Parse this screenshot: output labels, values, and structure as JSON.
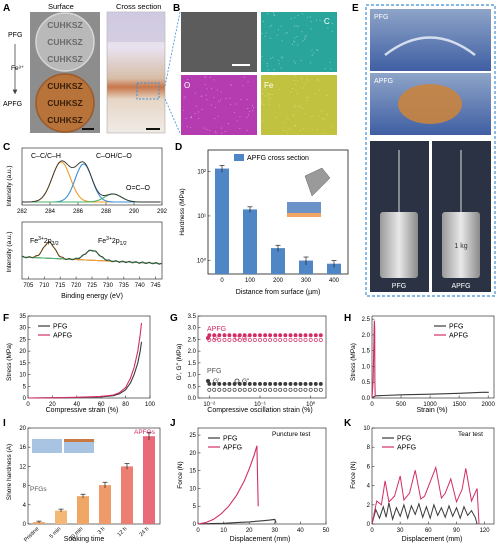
{
  "panels": {
    "A": {
      "letter": "A",
      "header_surface": "Surface",
      "header_cross": "Cross section",
      "label_pfg": "PFG",
      "label_fe": "Fe³⁺",
      "label_apfg": "APFG",
      "sample_text": "CUHKSZ",
      "colors": {
        "pfg_disc": "#b9b9b9",
        "apfg_disc": "#b8733a",
        "frame": "#8d8d8d"
      }
    },
    "B": {
      "letter": "B",
      "maps": [
        {
          "label": "",
          "color": "#5c5c5c"
        },
        {
          "label": "C",
          "color": "#2aa59b"
        },
        {
          "label": "O",
          "color": "#b43bb0"
        },
        {
          "label": "Fe",
          "color": "#c1c23f"
        }
      ]
    },
    "C": {
      "letter": "C",
      "top": {
        "ylabel": "Intensity (a.u.)",
        "peaks": [
          {
            "label": "C–C/C–H",
            "center": 284.8
          },
          {
            "label": "C–OH/C–O",
            "center": 286.4
          },
          {
            "label": "O=C–O",
            "center": 288.5
          }
        ],
        "xticks": [
          "282",
          "284",
          "286",
          "288",
          "290",
          "292"
        ]
      },
      "bottom": {
        "ylabel": "Intensity (a.u.)",
        "xlabel": "Binding energy (eV)",
        "peaks": [
          {
            "label_main": "Fe",
            "label_sup": "3+",
            "label_rest": "2p",
            "label_sub": "3/2",
            "center": 711.5
          },
          {
            "label_main": "Fe",
            "label_sup": "3+",
            "label_rest": "2p",
            "label_sub": "1/2",
            "center": 725
          }
        ],
        "xticks": [
          "705",
          "710",
          "715",
          "720",
          "725",
          "730",
          "735",
          "740",
          "745"
        ]
      },
      "colors": {
        "line": "#333333",
        "c_fit": "#f39c2a",
        "co_fit": "#3c8fd6",
        "oco_fit": "#4bb36a",
        "fe_fit1": "#f39c2a",
        "fe_fit2": "#4bb36a",
        "bg": "#7b5fb5"
      }
    },
    "D": {
      "letter": "D",
      "ylabel": "Hardness (MPa)",
      "xlabel": "Distance from surface (µm)",
      "yticks": [
        "10⁰",
        "10¹",
        "10²"
      ]
    },
    "E": {
      "letter": "E",
      "label_pfg_top": "PFG",
      "label_apfg_mid": "APFG",
      "label_pfg_bottom": "PFG",
      "label_apfg_bottom": "APFG",
      "weight_label": "1 kg",
      "border_color": "#3c8fd6"
    },
    "F": {
      "letter": "F",
      "ylabel": "Stress (MPa)",
      "xlabel": "Compressive strain (%)",
      "xticks": [
        "0",
        "20",
        "40",
        "60",
        "80",
        "100"
      ],
      "yticks": [
        "0",
        "5",
        "10",
        "15",
        "20",
        "25",
        "30",
        "35"
      ]
    },
    "G": {
      "letter": "G",
      "ylabel": "G′, G″ (MPa)",
      "xlabel": "Compressive oscillation strain (%)",
      "apfg_title": "APFG",
      "pfg_title": "PFG",
      "g1": "G′",
      "g2": "G″",
      "xticks": [
        "10⁻²",
        "10⁻¹",
        "10⁰"
      ],
      "yticks": [
        "0.0",
        "0.5",
        "1.0",
        "1.5",
        "2.0",
        "2.5",
        "3.0",
        "3.5"
      ]
    },
    "H": {
      "letter": "H",
      "ylabel": "Stress (MPa)",
      "xlabel": "Strain (%)",
      "xticks": [
        "0",
        "500",
        "1000",
        "1500",
        "2000"
      ],
      "yticks": [
        "0.0",
        "0.5",
        "1.0",
        "1.5",
        "2.0",
        "2.5"
      ]
    },
    "I": {
      "letter": "I",
      "ylabel": "Shore hardness (A)",
      "xlabel": "Soaking time",
      "pfg_note": "PFGs",
      "apfg_note": "APFGs",
      "yticks": [
        "0",
        "4",
        "8",
        "12",
        "16",
        "20"
      ]
    },
    "J": {
      "letter": "J",
      "ylabel": "Force (N)",
      "xlabel": "Displacement (mm)",
      "note": "Puncture test",
      "xticks": [
        "0",
        "10",
        "20",
        "30",
        "40",
        "50"
      ],
      "yticks": [
        "0",
        "5",
        "10",
        "15",
        "20",
        "25"
      ]
    },
    "K": {
      "letter": "K",
      "ylabel": "Force (N)",
      "xlabel": "Displacement (mm)",
      "note": "Tear test",
      "xticks": [
        "0",
        "30",
        "60",
        "90",
        "120"
      ],
      "yticks": [
        "0",
        "2",
        "4",
        "6",
        "8",
        "10"
      ]
    }
  },
  "colors": {
    "pfg": "#3a3a3a",
    "apfg": "#d12e63",
    "bar_blue": "#4f86c6",
    "bar_pink": "#e96a78",
    "bar_orange": "#f0a766"
  },
  "chart_data": [
    {
      "id": "D",
      "type": "bar",
      "series": [
        {
          "name": "APFG cross section",
          "values": [
            115,
            14,
            1.9,
            1.0,
            0.85
          ]
        }
      ],
      "categories": [
        "0",
        "100",
        "200",
        "300",
        "400"
      ],
      "errors": [
        20,
        2,
        0.3,
        0.2,
        0.15
      ],
      "yscale": "log",
      "ylim": [
        0.5,
        300
      ],
      "xlabel": "Distance from surface (µm)",
      "ylabel": "Hardness (MPa)"
    },
    {
      "id": "F",
      "type": "line",
      "xlabel": "Compressive strain (%)",
      "ylabel": "Stress (MPa)",
      "xlim": [
        0,
        100
      ],
      "ylim": [
        0,
        35
      ],
      "legend": "top-left",
      "series": [
        {
          "name": "PFG",
          "x": [
            0,
            20,
            40,
            60,
            70,
            75,
            80,
            84,
            87,
            90,
            92,
            93
          ],
          "y": [
            0,
            0.1,
            0.2,
            0.5,
            1.0,
            1.8,
            3.5,
            6.5,
            10,
            15,
            20,
            24
          ]
        },
        {
          "name": "APFG",
          "x": [
            0,
            20,
            40,
            60,
            70,
            75,
            80,
            84,
            87,
            90,
            92,
            93
          ],
          "y": [
            0,
            0.1,
            0.3,
            0.7,
            1.3,
            2.3,
            4.5,
            8.5,
            13,
            20,
            27,
            32
          ]
        }
      ]
    },
    {
      "id": "G",
      "type": "scatter",
      "xlabel": "Compressive oscillation strain (%)",
      "ylabel": "G′, G″ (MPa)",
      "xscale": "log",
      "xlim": [
        0.006,
        2
      ],
      "ylim": [
        0,
        3.5
      ],
      "x": [
        0.01,
        0.0125,
        0.0158,
        0.02,
        0.025,
        0.0316,
        0.04,
        0.05,
        0.063,
        0.079,
        0.1,
        0.126,
        0.158,
        0.2,
        0.25,
        0.316,
        0.4,
        0.5,
        0.63,
        0.79,
        1.0,
        1.26,
        1.58
      ],
      "series": [
        {
          "name": "APFG G′",
          "y": [
            2.68,
            2.68,
            2.68,
            2.68,
            2.68,
            2.68,
            2.68,
            2.68,
            2.68,
            2.68,
            2.68,
            2.68,
            2.68,
            2.68,
            2.68,
            2.68,
            2.68,
            2.68,
            2.68,
            2.68,
            2.68,
            2.68,
            2.68
          ]
        },
        {
          "name": "APFG G″",
          "y": [
            2.48,
            2.48,
            2.48,
            2.48,
            2.48,
            2.48,
            2.48,
            2.48,
            2.48,
            2.48,
            2.48,
            2.48,
            2.48,
            2.48,
            2.48,
            2.48,
            2.48,
            2.48,
            2.48,
            2.48,
            2.48,
            2.48,
            2.48
          ]
        },
        {
          "name": "PFG G′",
          "y": [
            0.6,
            0.6,
            0.6,
            0.6,
            0.6,
            0.6,
            0.6,
            0.6,
            0.6,
            0.6,
            0.6,
            0.6,
            0.6,
            0.6,
            0.6,
            0.6,
            0.6,
            0.6,
            0.6,
            0.6,
            0.6,
            0.6,
            0.6
          ]
        },
        {
          "name": "PFG G″",
          "y": [
            0.35,
            0.35,
            0.35,
            0.35,
            0.35,
            0.35,
            0.35,
            0.35,
            0.35,
            0.35,
            0.35,
            0.35,
            0.35,
            0.35,
            0.35,
            0.35,
            0.35,
            0.35,
            0.35,
            0.35,
            0.35,
            0.35,
            0.35
          ]
        }
      ]
    },
    {
      "id": "H",
      "type": "line",
      "xlabel": "Strain (%)",
      "ylabel": "Stress (MPa)",
      "xlim": [
        0,
        2100
      ],
      "ylim": [
        0,
        2.6
      ],
      "legend": "top-right",
      "series": [
        {
          "name": "PFG",
          "x": [
            0,
            40,
            80,
            200,
            500,
            1000,
            1500,
            1900,
            2010
          ],
          "y": [
            0,
            0.05,
            0.07,
            0.08,
            0.1,
            0.12,
            0.15,
            0.18,
            0.18
          ]
        },
        {
          "name": "APFG",
          "x": [
            0,
            20,
            30,
            38,
            42,
            46,
            50,
            55
          ],
          "y": [
            0,
            0.6,
            1.5,
            2.3,
            2.45,
            2.2,
            0.5,
            0.05
          ]
        }
      ]
    },
    {
      "id": "I",
      "type": "bar",
      "categories": [
        "Pristine",
        "5 min",
        "30 min",
        "3 h",
        "12 h",
        "24 h"
      ],
      "values": [
        0.4,
        2.8,
        5.8,
        8.1,
        12.0,
        18.3
      ],
      "errors": [
        0.2,
        0.3,
        0.4,
        0.6,
        0.6,
        0.8
      ],
      "ylim": [
        0,
        20
      ],
      "xlabel": "Soaking time",
      "ylabel": "Shore hardness (A)"
    },
    {
      "id": "J",
      "type": "line",
      "xlabel": "Displacement (mm)",
      "ylabel": "Force (N)",
      "xlim": [
        0,
        50
      ],
      "ylim": [
        0,
        27
      ],
      "legend": "top-left",
      "series": [
        {
          "name": "PFG",
          "x": [
            0,
            5,
            10,
            15,
            20,
            25,
            28,
            30,
            30.5
          ],
          "y": [
            0,
            0.1,
            0.2,
            0.4,
            0.6,
            0.9,
            1.1,
            1.3,
            0.3
          ]
        },
        {
          "name": "APFG",
          "x": [
            0,
            3,
            6,
            9,
            12,
            15,
            18,
            20,
            22,
            23,
            23.5
          ],
          "y": [
            0,
            0.4,
            1.3,
            2.8,
            5,
            8,
            12,
            15.5,
            19.5,
            22,
            5
          ]
        }
      ]
    },
    {
      "id": "K",
      "type": "line",
      "xlabel": "Displacement (mm)",
      "ylabel": "Force (N)",
      "xlim": [
        0,
        130
      ],
      "ylim": [
        0,
        10
      ],
      "legend": "top-left",
      "series": [
        {
          "name": "PFG",
          "x": [
            0,
            4,
            8,
            12,
            15,
            18,
            22,
            26,
            30,
            34,
            38,
            42,
            46,
            50,
            54,
            58,
            62,
            66,
            70,
            74,
            78,
            82,
            86,
            90,
            94,
            98,
            102,
            106,
            110,
            112
          ],
          "y": [
            0,
            1.5,
            0.6,
            1.8,
            0.7,
            2.2,
            0.5,
            1.7,
            0.8,
            2.0,
            0.6,
            1.9,
            1.0,
            2.1,
            0.7,
            1.8,
            0.6,
            2.0,
            0.9,
            1.7,
            0.7,
            1.9,
            0.8,
            1.7,
            0.6,
            1.8,
            0.9,
            1.4,
            0.7,
            0
          ]
        },
        {
          "name": "APFG",
          "x": [
            0,
            5,
            10,
            14,
            18,
            24,
            30,
            34,
            40,
            46,
            52,
            56,
            62,
            68,
            74,
            78,
            84,
            90,
            96,
            100,
            106,
            112,
            114
          ],
          "y": [
            0,
            2.4,
            2.0,
            4.5,
            2.3,
            2.9,
            5.0,
            2.5,
            3.2,
            5.6,
            2.6,
            2.9,
            4.4,
            5.9,
            2.7,
            3.2,
            4.7,
            2.3,
            3.6,
            5.8,
            2.4,
            3.7,
            0
          ]
        }
      ]
    }
  ]
}
